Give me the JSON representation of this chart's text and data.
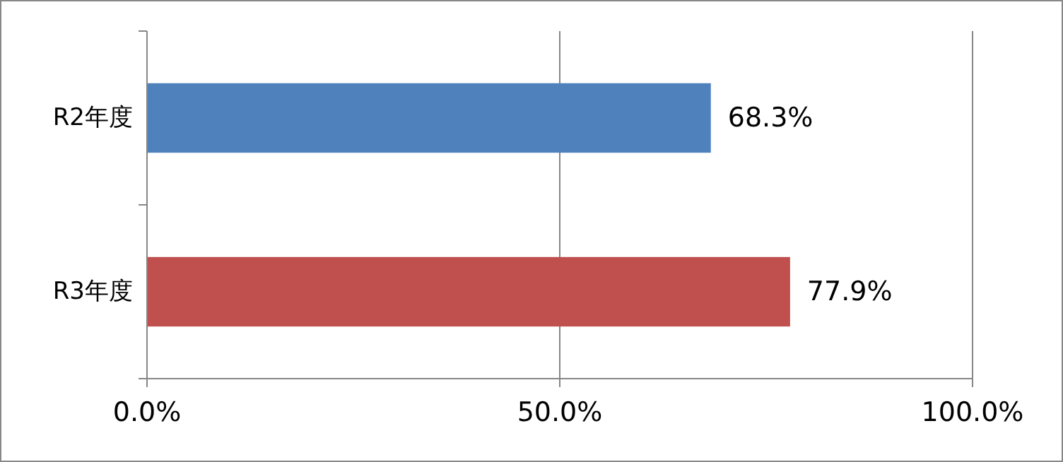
{
  "chart_data": {
    "type": "bar",
    "orientation": "horizontal",
    "categories": [
      "R2年度",
      "R3年度"
    ],
    "values": [
      68.3,
      77.9
    ],
    "colors": [
      "#4f81bd",
      "#c0504d"
    ],
    "value_labels": [
      "68.3%",
      "77.9%"
    ],
    "xlim": [
      0,
      100
    ],
    "xticks": [
      {
        "value": 0,
        "label": "0.0%"
      },
      {
        "value": 50,
        "label": "50.0%"
      },
      {
        "value": 100,
        "label": "100.0%"
      }
    ],
    "grid": "x"
  }
}
